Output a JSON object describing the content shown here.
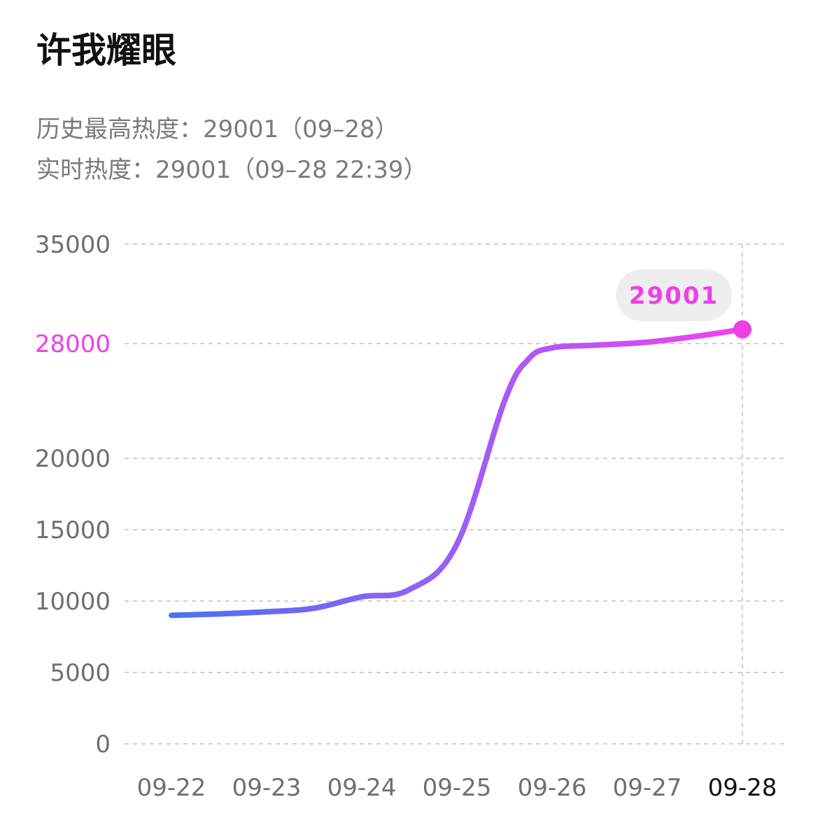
{
  "title": "许我耀眼",
  "stats": {
    "peak_label": "历史最高热度：",
    "peak_value": "29001（09–28）",
    "realtime_label": "实时热度：",
    "realtime_value": "29001（09–28 22:39）"
  },
  "colors": {
    "line_start": "#4a72ef",
    "line_mid": "#a35cf5",
    "line_end": "#f044ee",
    "highlight": "#ee3fe6",
    "tooltip_bg": "#eeeeee",
    "axis_text": "#6f6f6f",
    "active_tick": "#111111",
    "grid": "#cfcfcf"
  },
  "chart_data": {
    "type": "line",
    "categories": [
      "09-22",
      "09-23",
      "09-24",
      "09-25",
      "09-26",
      "09-27",
      "09-28"
    ],
    "x": [
      0,
      0.5,
      1,
      1.5,
      2,
      2.5,
      3,
      3.5,
      3.75,
      4,
      4.5,
      5,
      5.5,
      6
    ],
    "values": [
      9000,
      9100,
      9250,
      9500,
      10300,
      10800,
      14000,
      24000,
      26900,
      27700,
      27900,
      28100,
      28500,
      29001
    ],
    "ylim": [
      0,
      35000
    ],
    "yticks": [
      "0",
      "5000",
      "10000",
      "15000",
      "20000",
      "28000",
      "35000"
    ],
    "highlight_ytick": "28000",
    "active_category": "09-28",
    "last_point_label": "29001",
    "grid": true,
    "legend": "none"
  }
}
